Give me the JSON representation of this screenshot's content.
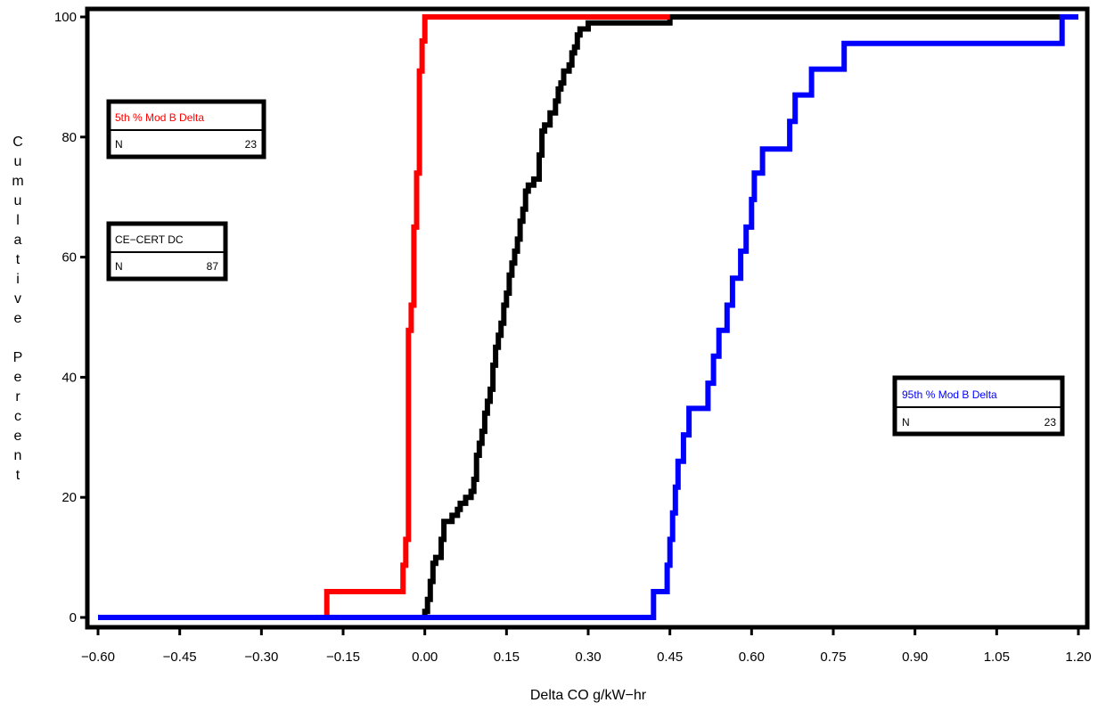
{
  "chart_data": {
    "type": "line",
    "subtype": "empirical-cdf-step",
    "title": "",
    "xlabel": "Delta CO g/kW−hr",
    "ylabel": "Cumulative Percent",
    "xlim": [
      -0.6,
      1.2
    ],
    "ylim": [
      0,
      100
    ],
    "x_ticks": [
      -0.6,
      -0.45,
      -0.3,
      -0.15,
      0.0,
      0.15,
      0.3,
      0.45,
      0.6,
      0.75,
      0.9,
      1.05,
      1.2
    ],
    "x_tick_labels": [
      "−0.60",
      "−0.45",
      "−0.30",
      "−0.15",
      "0.00",
      "0.15",
      "0.30",
      "0.45",
      "0.60",
      "0.75",
      "0.90",
      "1.05",
      "1.20"
    ],
    "y_ticks": [
      0,
      20,
      40,
      60,
      80,
      100
    ],
    "y_tick_labels": [
      "0",
      "20",
      "40",
      "60",
      "80",
      "100"
    ],
    "grid": false,
    "series": [
      {
        "name": "5th % Mod B Delta",
        "n_label": "N",
        "n": "23",
        "color": "#ff0000",
        "points": [
          [
            -0.18,
            0
          ],
          [
            -0.18,
            4.3
          ],
          [
            -0.04,
            4.3
          ],
          [
            -0.04,
            8.7
          ],
          [
            -0.035,
            8.7
          ],
          [
            -0.035,
            13
          ],
          [
            -0.03,
            13
          ],
          [
            -0.03,
            47.8
          ],
          [
            -0.025,
            47.8
          ],
          [
            -0.025,
            52
          ],
          [
            -0.02,
            52
          ],
          [
            -0.02,
            65
          ],
          [
            -0.015,
            65
          ],
          [
            -0.015,
            74
          ],
          [
            -0.01,
            74
          ],
          [
            -0.01,
            91
          ],
          [
            -0.005,
            91
          ],
          [
            -0.005,
            96
          ],
          [
            0.0,
            96
          ],
          [
            0.0,
            100
          ],
          [
            0.45,
            100
          ]
        ]
      },
      {
        "name": "CE−CERT DC",
        "n_label": "N",
        "n": "87",
        "color": "#000000",
        "points": [
          [
            0.0,
            0
          ],
          [
            0.0,
            1
          ],
          [
            0.005,
            1
          ],
          [
            0.005,
            3
          ],
          [
            0.01,
            3
          ],
          [
            0.01,
            6
          ],
          [
            0.015,
            6
          ],
          [
            0.015,
            9
          ],
          [
            0.02,
            9
          ],
          [
            0.02,
            10
          ],
          [
            0.03,
            10
          ],
          [
            0.03,
            13
          ],
          [
            0.035,
            13
          ],
          [
            0.035,
            16
          ],
          [
            0.05,
            16
          ],
          [
            0.05,
            17
          ],
          [
            0.06,
            17
          ],
          [
            0.06,
            18
          ],
          [
            0.065,
            18
          ],
          [
            0.065,
            19
          ],
          [
            0.075,
            19
          ],
          [
            0.075,
            20
          ],
          [
            0.085,
            20
          ],
          [
            0.085,
            21
          ],
          [
            0.09,
            21
          ],
          [
            0.09,
            23
          ],
          [
            0.095,
            23
          ],
          [
            0.095,
            27
          ],
          [
            0.1,
            27
          ],
          [
            0.1,
            29
          ],
          [
            0.105,
            29
          ],
          [
            0.105,
            31
          ],
          [
            0.11,
            31
          ],
          [
            0.11,
            34
          ],
          [
            0.115,
            34
          ],
          [
            0.115,
            36
          ],
          [
            0.12,
            36
          ],
          [
            0.12,
            38
          ],
          [
            0.125,
            38
          ],
          [
            0.125,
            42
          ],
          [
            0.13,
            42
          ],
          [
            0.13,
            45
          ],
          [
            0.135,
            45
          ],
          [
            0.135,
            47
          ],
          [
            0.14,
            47
          ],
          [
            0.14,
            49
          ],
          [
            0.145,
            49
          ],
          [
            0.145,
            52
          ],
          [
            0.15,
            52
          ],
          [
            0.15,
            54
          ],
          [
            0.155,
            54
          ],
          [
            0.155,
            57
          ],
          [
            0.16,
            57
          ],
          [
            0.16,
            59
          ],
          [
            0.165,
            59
          ],
          [
            0.165,
            61
          ],
          [
            0.17,
            61
          ],
          [
            0.17,
            63
          ],
          [
            0.175,
            63
          ],
          [
            0.175,
            66
          ],
          [
            0.18,
            66
          ],
          [
            0.18,
            68
          ],
          [
            0.185,
            68
          ],
          [
            0.185,
            71
          ],
          [
            0.19,
            71
          ],
          [
            0.19,
            72
          ],
          [
            0.2,
            72
          ],
          [
            0.2,
            73
          ],
          [
            0.21,
            73
          ],
          [
            0.21,
            77
          ],
          [
            0.215,
            77
          ],
          [
            0.215,
            81
          ],
          [
            0.22,
            81
          ],
          [
            0.22,
            82
          ],
          [
            0.23,
            82
          ],
          [
            0.23,
            84
          ],
          [
            0.24,
            84
          ],
          [
            0.24,
            86
          ],
          [
            0.245,
            86
          ],
          [
            0.245,
            88
          ],
          [
            0.25,
            88
          ],
          [
            0.25,
            89
          ],
          [
            0.255,
            89
          ],
          [
            0.255,
            91
          ],
          [
            0.265,
            91
          ],
          [
            0.265,
            92
          ],
          [
            0.27,
            92
          ],
          [
            0.27,
            94
          ],
          [
            0.275,
            94
          ],
          [
            0.275,
            95
          ],
          [
            0.28,
            95
          ],
          [
            0.28,
            97
          ],
          [
            0.285,
            97
          ],
          [
            0.285,
            98
          ],
          [
            0.3,
            98
          ],
          [
            0.3,
            99
          ],
          [
            0.45,
            99
          ],
          [
            0.45,
            100
          ],
          [
            1.2,
            100
          ]
        ]
      },
      {
        "name": "95th % Mod B Delta",
        "n_label": "N",
        "n": "23",
        "color": "#0000ff",
        "points": [
          [
            -0.6,
            0
          ],
          [
            0.42,
            0
          ],
          [
            0.42,
            4.3
          ],
          [
            0.445,
            4.3
          ],
          [
            0.445,
            8.7
          ],
          [
            0.45,
            8.7
          ],
          [
            0.45,
            13
          ],
          [
            0.455,
            13
          ],
          [
            0.455,
            17.4
          ],
          [
            0.46,
            17.4
          ],
          [
            0.46,
            21.7
          ],
          [
            0.465,
            21.7
          ],
          [
            0.465,
            26
          ],
          [
            0.475,
            26
          ],
          [
            0.475,
            30.4
          ],
          [
            0.485,
            30.4
          ],
          [
            0.485,
            34.8
          ],
          [
            0.52,
            34.8
          ],
          [
            0.52,
            39
          ],
          [
            0.53,
            39
          ],
          [
            0.53,
            43.5
          ],
          [
            0.54,
            43.5
          ],
          [
            0.54,
            47.8
          ],
          [
            0.555,
            47.8
          ],
          [
            0.555,
            52
          ],
          [
            0.565,
            52
          ],
          [
            0.565,
            56.5
          ],
          [
            0.58,
            56.5
          ],
          [
            0.58,
            61
          ],
          [
            0.59,
            61
          ],
          [
            0.59,
            65
          ],
          [
            0.6,
            65
          ],
          [
            0.6,
            69.6
          ],
          [
            0.605,
            69.6
          ],
          [
            0.605,
            74
          ],
          [
            0.62,
            74
          ],
          [
            0.62,
            78
          ],
          [
            0.67,
            78
          ],
          [
            0.67,
            82.6
          ],
          [
            0.68,
            82.6
          ],
          [
            0.68,
            87
          ],
          [
            0.71,
            87
          ],
          [
            0.71,
            91.3
          ],
          [
            0.77,
            91.3
          ],
          [
            0.77,
            95.6
          ],
          [
            0.85,
            95.6
          ],
          [
            0.85,
            95.6
          ],
          [
            1.17,
            95.6
          ],
          [
            1.17,
            100
          ],
          [
            1.2,
            100
          ]
        ]
      }
    ]
  }
}
